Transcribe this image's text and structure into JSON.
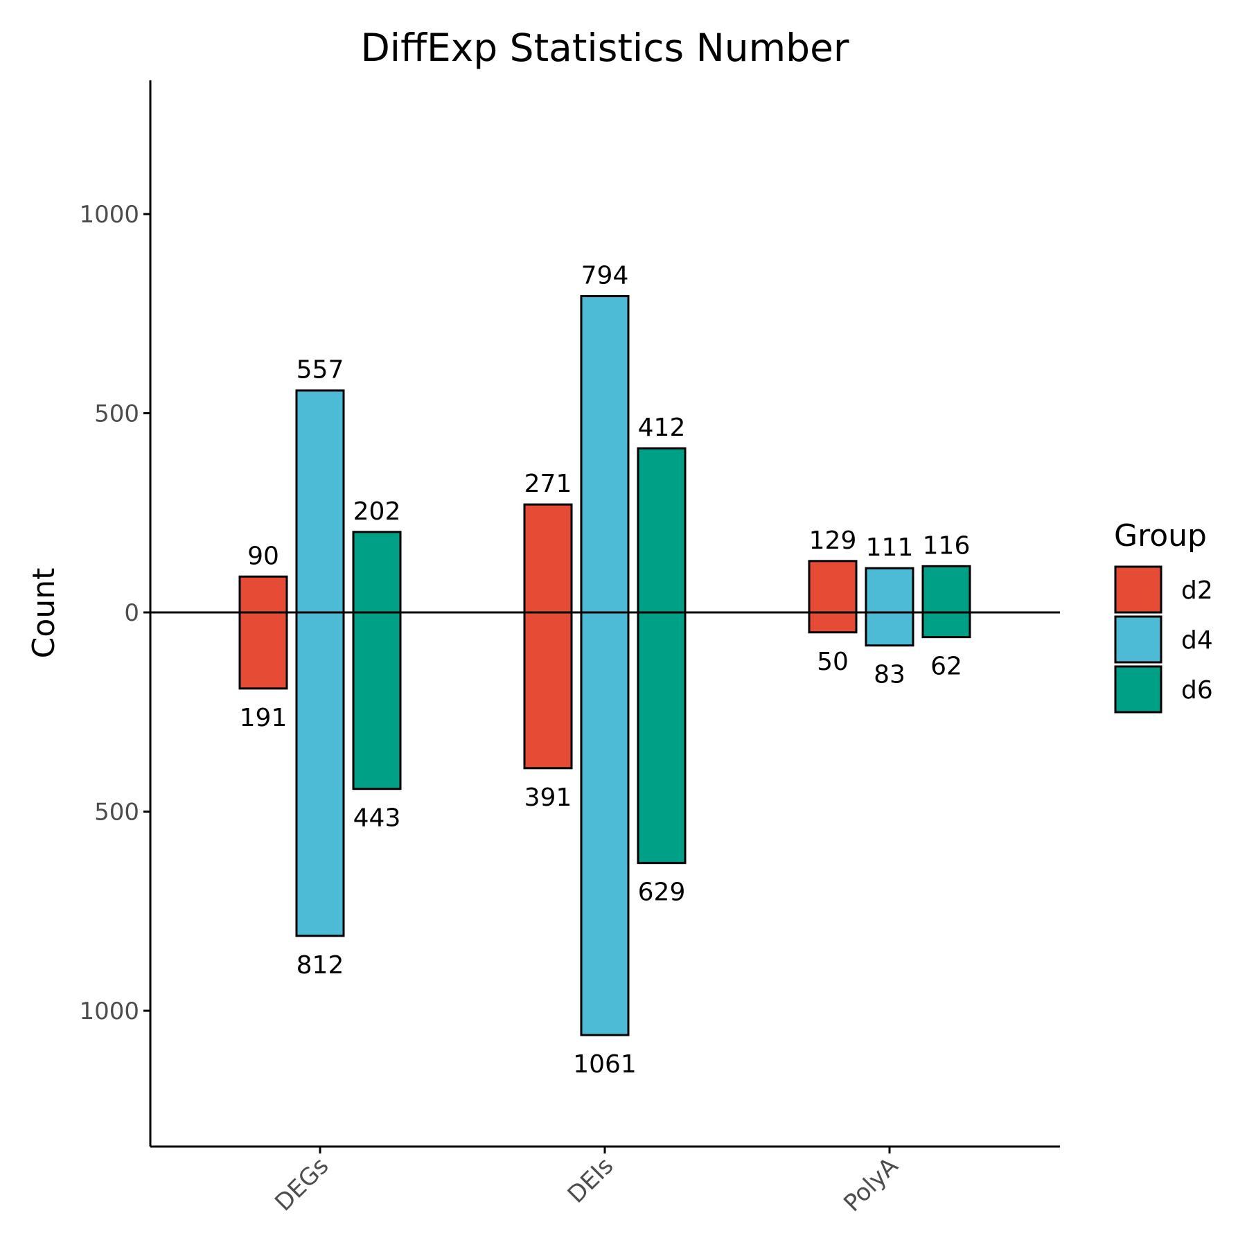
{
  "chart_data": {
    "type": "bar",
    "title": "DiffExp Statistics Number",
    "xlabel": "",
    "ylabel": "Count",
    "categories": [
      "DEGs",
      "DEIs",
      "PolyA"
    ],
    "ylim": [
      -1340,
      1340
    ],
    "yticks": [
      {
        "value": 1000,
        "label": "1000"
      },
      {
        "value": 500,
        "label": "500"
      },
      {
        "value": 0,
        "label": "0"
      },
      {
        "value": -500,
        "label": "500"
      },
      {
        "value": -1000,
        "label": "1000"
      }
    ],
    "series": [
      {
        "name": "d2",
        "color": "#E64B35",
        "up": [
          90,
          271,
          129
        ],
        "down": [
          191,
          391,
          50
        ]
      },
      {
        "name": "d4",
        "color": "#4DBBD5",
        "up": [
          557,
          794,
          111
        ],
        "down": [
          812,
          1061,
          83
        ]
      },
      {
        "name": "d6",
        "color": "#00A087",
        "up": [
          202,
          412,
          116
        ],
        "down": [
          443,
          629,
          62
        ]
      }
    ],
    "legend": {
      "title": "Group",
      "position": "right"
    },
    "grid": false
  }
}
